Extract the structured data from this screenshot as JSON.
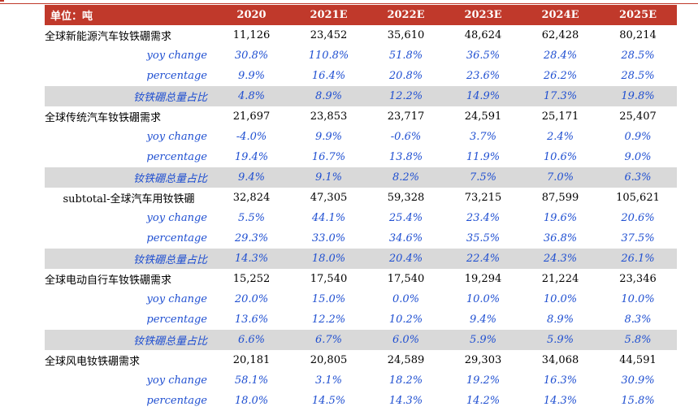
{
  "header": {
    "unit": "单位：吨",
    "years": [
      "2020",
      "2021E",
      "2022E",
      "2023E",
      "2024E",
      "2025E"
    ]
  },
  "rows": [
    {
      "label": "全球新能源汽车钕铁硼需求",
      "style": "main",
      "values": [
        "11,126",
        "23,452",
        "35,610",
        "48,624",
        "62,428",
        "80,214"
      ]
    },
    {
      "label": "yoy change",
      "style": "sub",
      "values": [
        "30.8%",
        "110.8%",
        "51.8%",
        "36.5%",
        "28.4%",
        "28.5%"
      ]
    },
    {
      "label": "percentage",
      "style": "sub",
      "values": [
        "9.9%",
        "16.4%",
        "20.8%",
        "23.6%",
        "26.2%",
        "28.5%"
      ]
    },
    {
      "label": "钕铁硼总量占比",
      "style": "grey",
      "values": [
        "4.8%",
        "8.9%",
        "12.2%",
        "14.9%",
        "17.3%",
        "19.8%"
      ]
    },
    {
      "label": "全球传统汽车钕铁硼需求",
      "style": "main",
      "values": [
        "21,697",
        "23,853",
        "23,717",
        "24,591",
        "25,171",
        "25,407"
      ]
    },
    {
      "label": "yoy change",
      "style": "sub",
      "values": [
        "-4.0%",
        "9.9%",
        "-0.6%",
        "3.7%",
        "2.4%",
        "0.9%"
      ]
    },
    {
      "label": "percentage",
      "style": "sub",
      "values": [
        "19.4%",
        "16.7%",
        "13.8%",
        "11.9%",
        "10.6%",
        "9.0%"
      ]
    },
    {
      "label": "钕铁硼总量占比",
      "style": "grey",
      "values": [
        "9.4%",
        "9.1%",
        "8.2%",
        "7.5%",
        "7.0%",
        "6.3%"
      ]
    },
    {
      "label": "subtotal-全球汽车用钕铁硼",
      "style": "center",
      "values": [
        "32,824",
        "47,305",
        "59,328",
        "73,215",
        "87,599",
        "105,621"
      ]
    },
    {
      "label": "yoy change",
      "style": "sub",
      "values": [
        "5.5%",
        "44.1%",
        "25.4%",
        "23.4%",
        "19.6%",
        "20.6%"
      ]
    },
    {
      "label": "percentage",
      "style": "sub",
      "values": [
        "29.3%",
        "33.0%",
        "34.6%",
        "35.5%",
        "36.8%",
        "37.5%"
      ]
    },
    {
      "label": "钕铁硼总量占比",
      "style": "grey",
      "values": [
        "14.3%",
        "18.0%",
        "20.4%",
        "22.4%",
        "24.3%",
        "26.1%"
      ]
    },
    {
      "label": "全球电动自行车钕铁硼需求",
      "style": "main",
      "values": [
        "15,252",
        "17,540",
        "17,540",
        "19,294",
        "21,224",
        "23,346"
      ]
    },
    {
      "label": "yoy change",
      "style": "sub",
      "values": [
        "20.0%",
        "15.0%",
        "0.0%",
        "10.0%",
        "10.0%",
        "10.0%"
      ]
    },
    {
      "label": "percentage",
      "style": "sub",
      "values": [
        "13.6%",
        "12.2%",
        "10.2%",
        "9.4%",
        "8.9%",
        "8.3%"
      ]
    },
    {
      "label": "钕铁硼总量占比",
      "style": "grey",
      "values": [
        "6.6%",
        "6.7%",
        "6.0%",
        "5.9%",
        "5.9%",
        "5.8%"
      ]
    },
    {
      "label": "全球风电钕铁硼需求",
      "style": "main",
      "values": [
        "20,181",
        "20,805",
        "24,589",
        "29,303",
        "34,068",
        "44,591"
      ]
    },
    {
      "label": "yoy change",
      "style": "sub",
      "values": [
        "58.1%",
        "3.1%",
        "18.2%",
        "19.2%",
        "16.3%",
        "30.9%"
      ]
    },
    {
      "label": "percentage",
      "style": "sub",
      "values": [
        "18.0%",
        "14.5%",
        "14.3%",
        "14.2%",
        "14.3%",
        "15.8%"
      ]
    }
  ]
}
